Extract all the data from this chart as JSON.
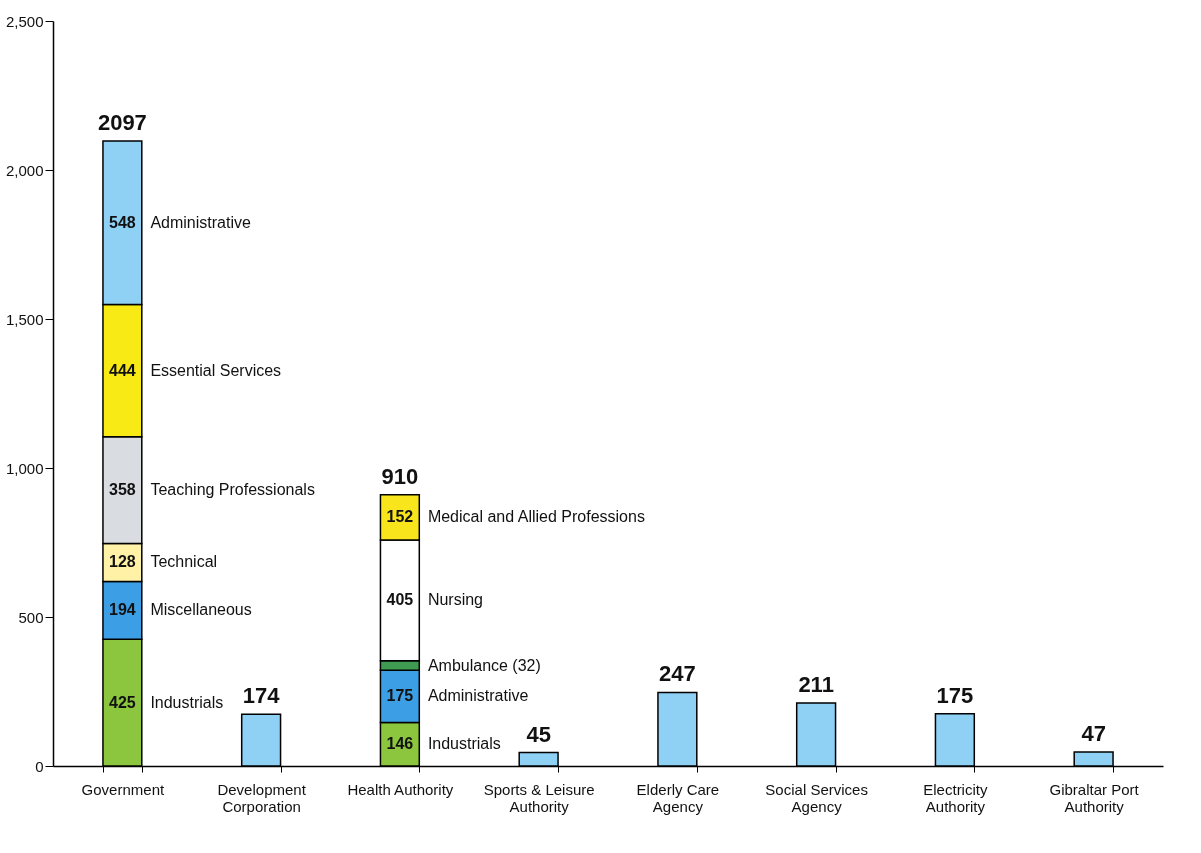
{
  "chart_data": {
    "type": "bar",
    "stacked": true,
    "categories": [
      "Government",
      "Development Corporation",
      "Health Authority",
      "Sports & Leisure Authority",
      "Elderly Care Agency",
      "Social Services Agency",
      "Electricity Authority",
      "Gibraltar Port Authority"
    ],
    "series": [
      {
        "name": "Industrials",
        "color": "#8cc63f",
        "values": [
          425,
          null,
          146,
          null,
          null,
          null,
          null,
          null
        ],
        "value_labels": [
          "425",
          null,
          "146",
          null,
          null,
          null,
          null,
          null
        ]
      },
      {
        "name": "Miscellaneous",
        "color": "#3c9fe6",
        "values": [
          194,
          null,
          null,
          null,
          null,
          null,
          null,
          null
        ],
        "value_labels": [
          "194",
          null,
          null,
          null,
          null,
          null,
          null,
          null
        ]
      },
      {
        "name": "Administrative",
        "color": "#3c9fe6",
        "values": [
          null,
          null,
          175,
          null,
          null,
          null,
          null,
          null
        ],
        "value_labels": [
          null,
          null,
          "175",
          null,
          null,
          null,
          null,
          null
        ]
      },
      {
        "name": "Ambulance (32)",
        "color": "#3f9a52",
        "values": [
          null,
          null,
          32,
          null,
          null,
          null,
          null,
          null
        ]
      },
      {
        "name": "Technical",
        "color": "#fff2a6",
        "values": [
          128,
          null,
          null,
          null,
          null,
          null,
          null,
          null
        ],
        "value_labels": [
          "128",
          null,
          null,
          null,
          null,
          null,
          null,
          null
        ]
      },
      {
        "name": "Teaching Professionals",
        "color": "#d9dde1",
        "values": [
          358,
          null,
          null,
          null,
          null,
          null,
          null,
          null
        ],
        "value_labels": [
          "358",
          null,
          null,
          null,
          null,
          null,
          null,
          null
        ]
      },
      {
        "name": "Nursing",
        "color": "#ffffff",
        "values": [
          null,
          null,
          405,
          null,
          null,
          null,
          null,
          null
        ],
        "value_labels": [
          null,
          null,
          "405",
          null,
          null,
          null,
          null,
          null
        ]
      },
      {
        "name": "Essential Services",
        "color": "#f8ea14",
        "values": [
          444,
          null,
          null,
          null,
          null,
          null,
          null,
          null
        ],
        "value_labels": [
          "444",
          null,
          null,
          null,
          null,
          null,
          null,
          null
        ]
      },
      {
        "name": "Medical and Allied Professions",
        "color": "#f8e51c",
        "values": [
          null,
          null,
          152,
          null,
          null,
          null,
          null,
          null
        ],
        "value_labels": [
          null,
          null,
          "152",
          null,
          null,
          null,
          null,
          null
        ]
      },
      {
        "name": "Administrative",
        "color": "#8fd0f5",
        "values": [
          548,
          null,
          null,
          null,
          null,
          null,
          null,
          null
        ],
        "value_labels": [
          "548",
          null,
          null,
          null,
          null,
          null,
          null,
          null
        ]
      },
      {
        "color": "#8fd0f5",
        "values": [
          null,
          174,
          null,
          45,
          247,
          211,
          175,
          47
        ]
      }
    ],
    "totals": [
      "2097",
      "174",
      "910",
      "45",
      "247",
      "211",
      "175",
      "47"
    ],
    "ylim": [
      0,
      2500
    ],
    "yticks": [
      0,
      {
        "value": 500,
        "label": "500"
      },
      {
        "value": 1000,
        "label": "1,000"
      },
      {
        "value": 1500,
        "label": "1,500"
      },
      {
        "value": 2000,
        "label": "2,000"
      },
      {
        "value": 2500,
        "label": "2,500"
      }
    ],
    "grid": false,
    "legend": false
  }
}
